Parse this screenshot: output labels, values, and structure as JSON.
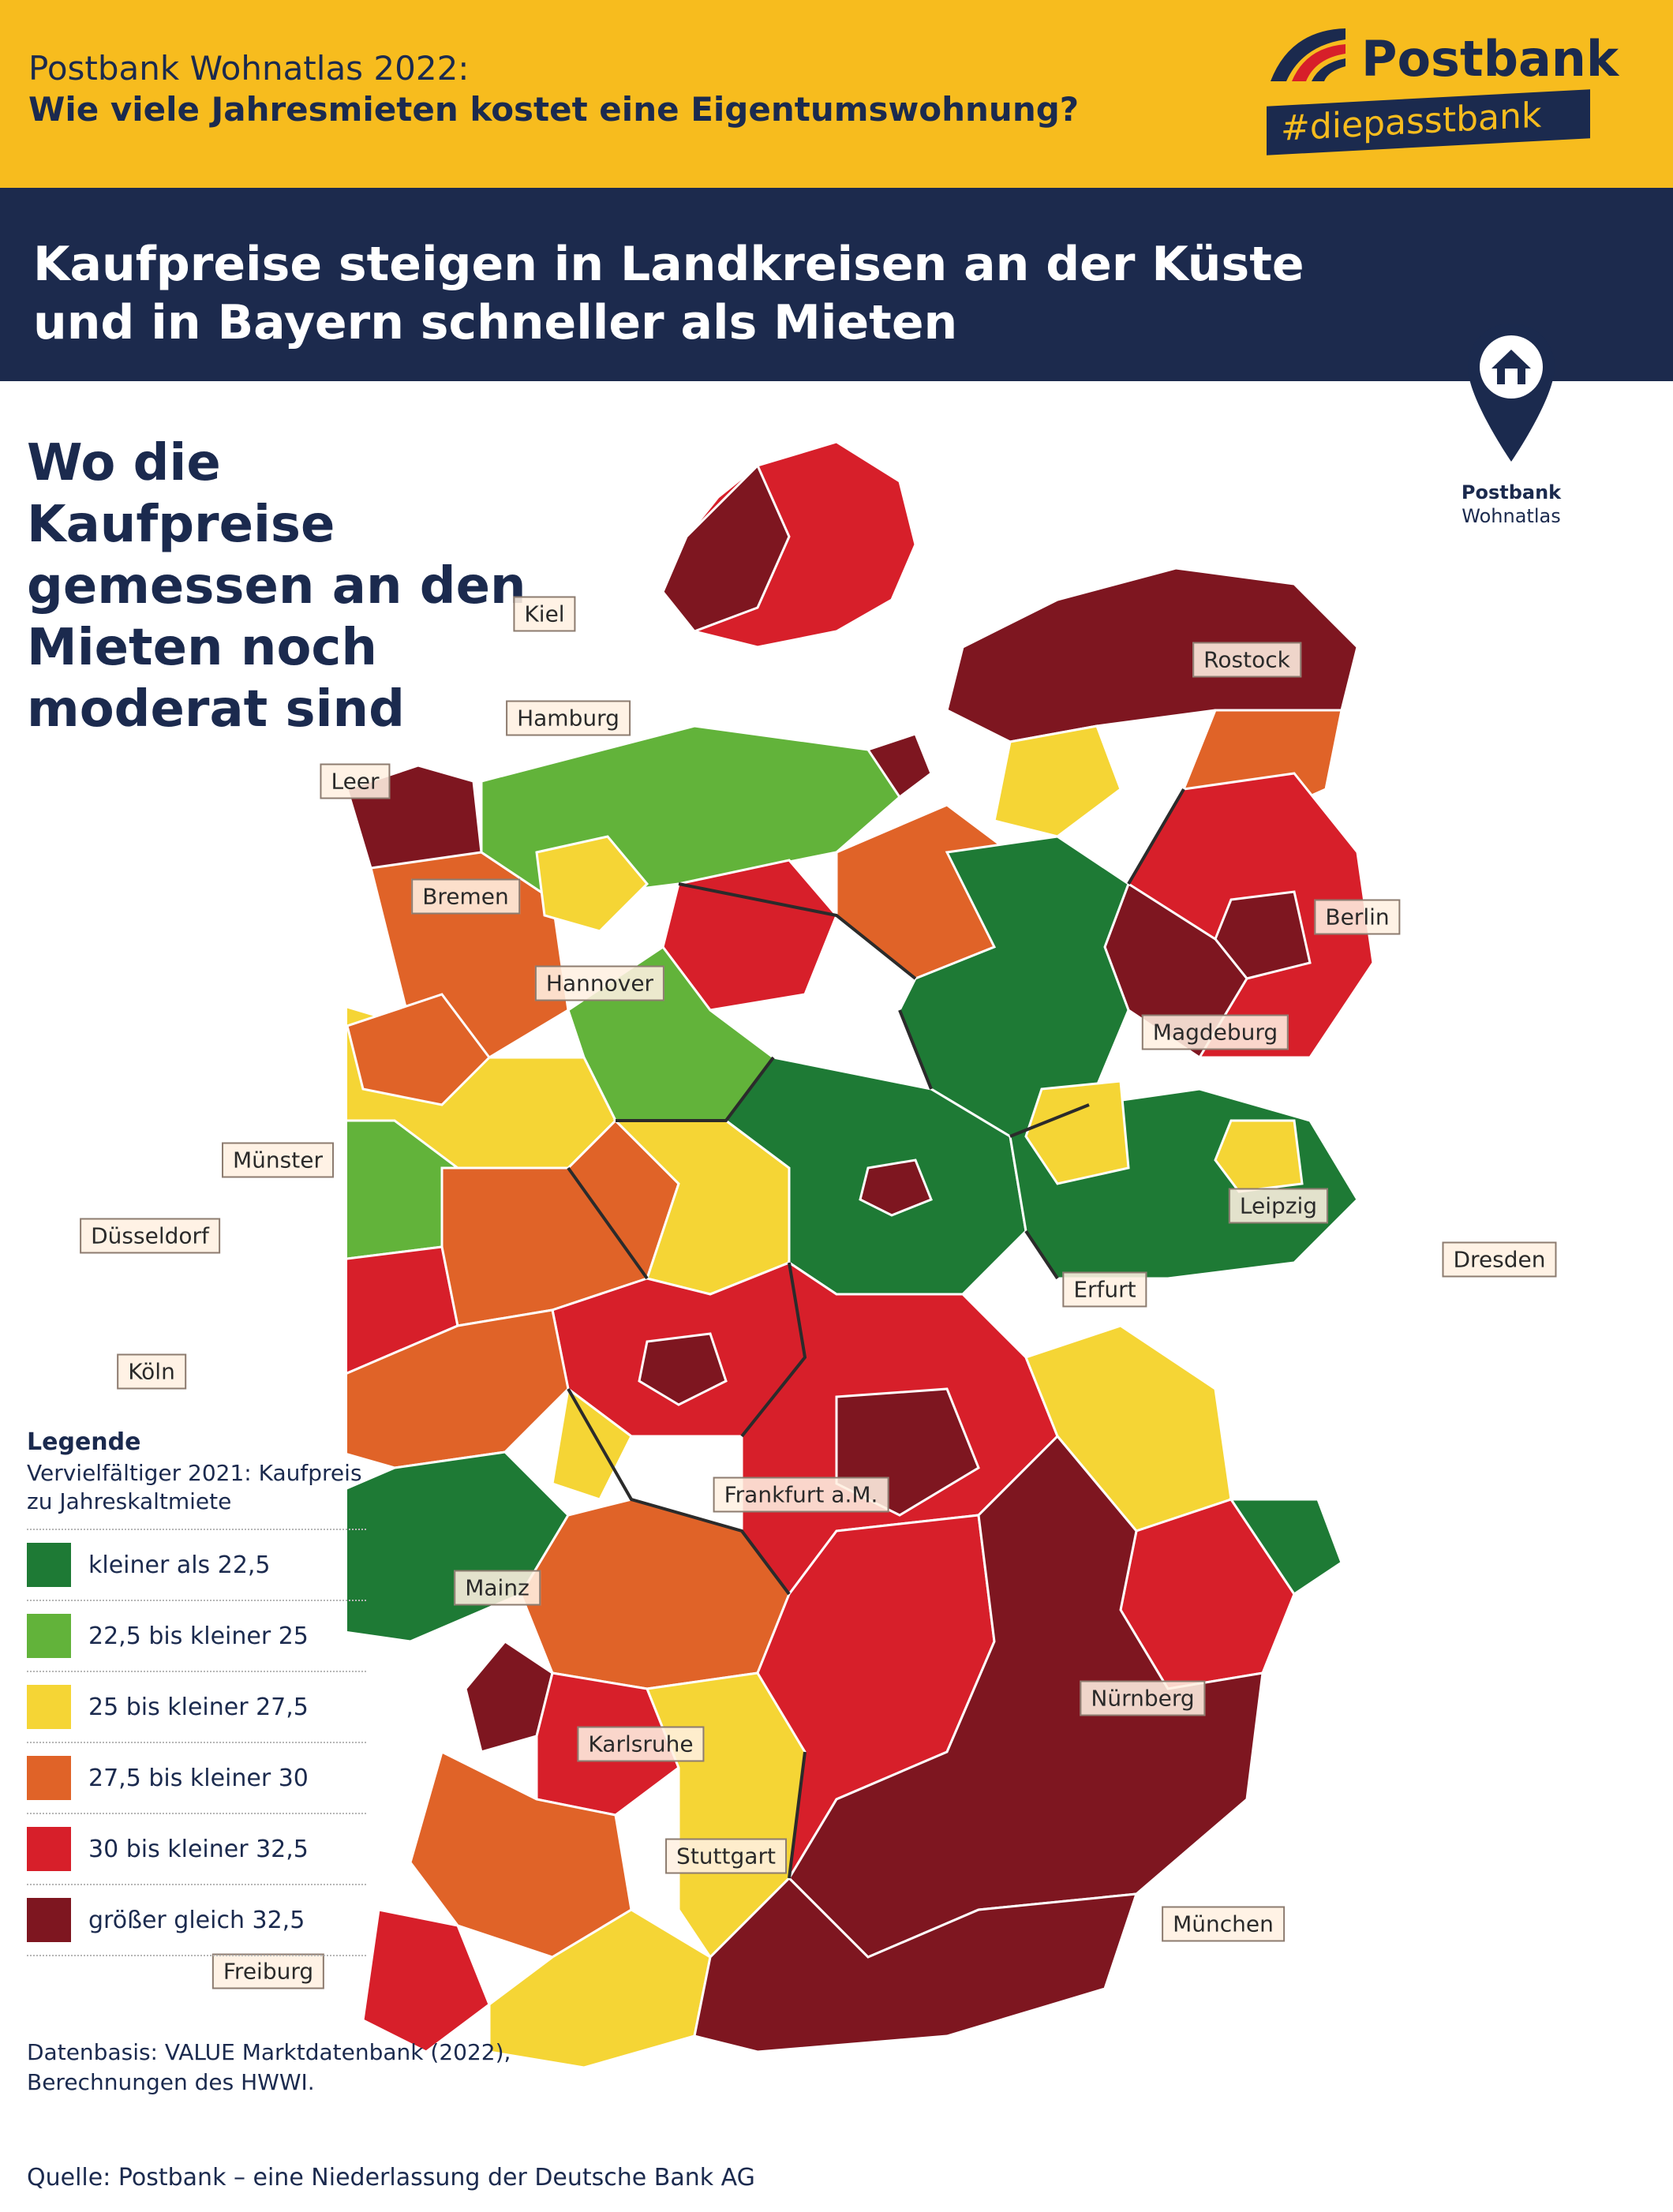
{
  "header": {
    "kicker": "Postbank Wohnatlas 2022:",
    "question": "Wie viele Jahresmieten kostet eine Eigentumswohnung?",
    "logo_text": "Postbank",
    "hashtag": "#diepasstbank",
    "pin_brand": "Postbank",
    "pin_sub": "Wohnatlas"
  },
  "headline": "Kaufpreise steigen in Landkreisen an der Küste und in Bayern schneller als Mieten",
  "subheadline": "Wo die Kaufpreise gemessen an den Mieten noch moderat sind",
  "map": {
    "cities": [
      "Kiel",
      "Rostock",
      "Hamburg",
      "Leer",
      "Bremen",
      "Berlin",
      "Hannover",
      "Magdeburg",
      "Münster",
      "Düsseldorf",
      "Leipzig",
      "Dresden",
      "Erfurt",
      "Köln",
      "Frankfurt a.M.",
      "Mainz",
      "Nürnberg",
      "Karlsruhe",
      "Stuttgart",
      "München",
      "Freiburg"
    ]
  },
  "legend": {
    "title": "Legende",
    "description": "Vervielfältiger 2021: Kaufpreis zu Jahreskaltmiete",
    "items": [
      {
        "label": "kleiner als 22,5",
        "color": "#1e7a35"
      },
      {
        "label": "22,5 bis kleiner 25",
        "color": "#62b33a"
      },
      {
        "label": "25 bis kleiner 27,5",
        "color": "#f5d535"
      },
      {
        "label": "27,5 bis kleiner 30",
        "color": "#e06328"
      },
      {
        "label": "30 bis kleiner 32,5",
        "color": "#d71f2a"
      },
      {
        "label": "größer gleich 32,5",
        "color": "#7e1620"
      }
    ]
  },
  "footer": {
    "datenbasis": "Datenbasis: VALUE Marktdatenbank (2022), Berechnungen des HWWI.",
    "quelle": "Quelle: Postbank – eine Niederlassung der Deutsche Bank AG"
  },
  "colors": {
    "header_yellow": "#f7bc1e",
    "navy": "#1c2a4d"
  }
}
